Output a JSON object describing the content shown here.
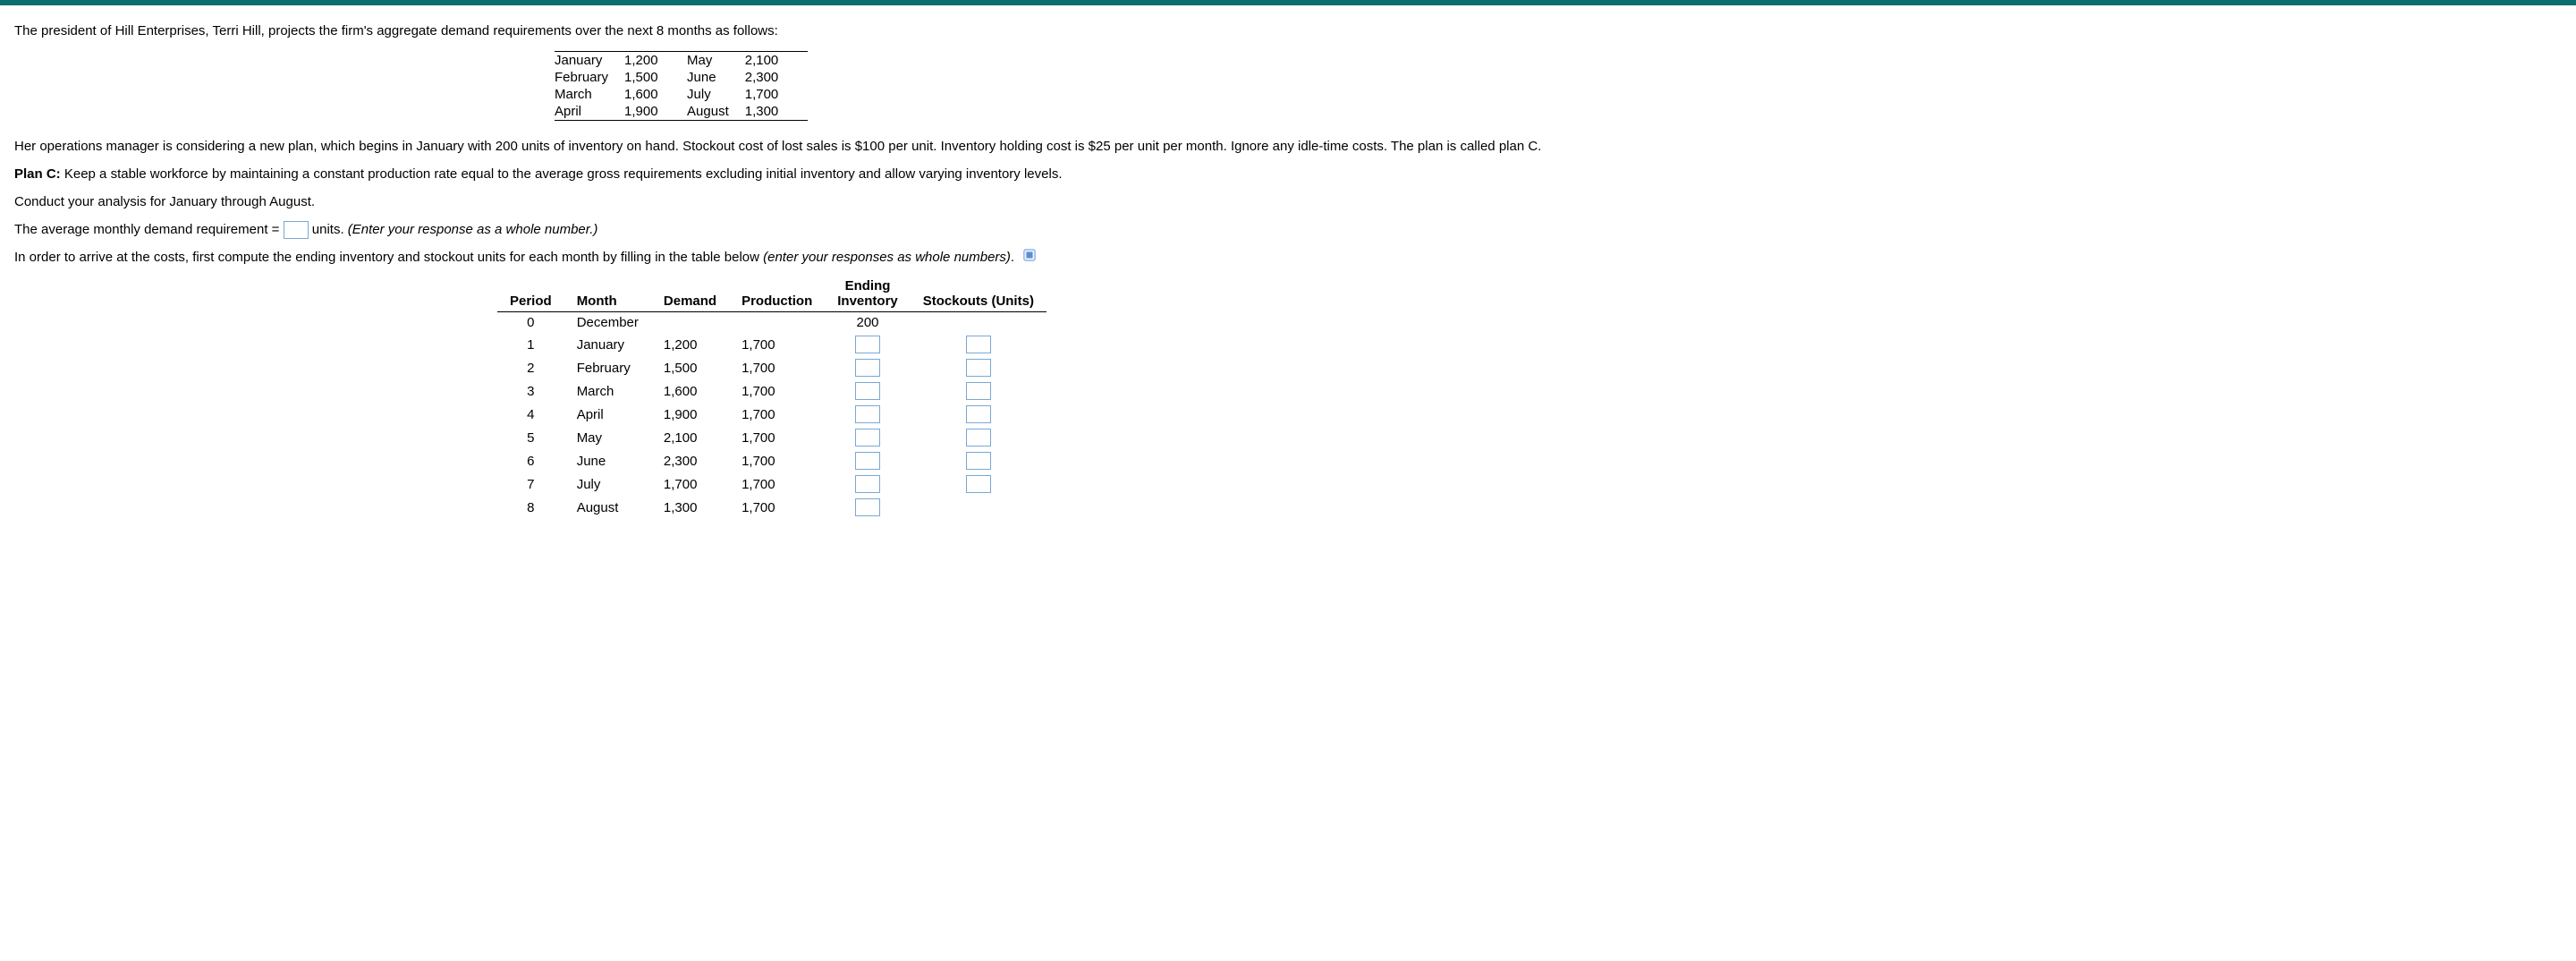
{
  "intro": "The president of Hill Enterprises, Terri Hill, projects the firm's aggregate demand requirements over the next 8 months as follows:",
  "demand_schedule": {
    "left": [
      {
        "month": "January",
        "value": "1,200"
      },
      {
        "month": "February",
        "value": "1,500"
      },
      {
        "month": "March",
        "value": "1,600"
      },
      {
        "month": "April",
        "value": "1,900"
      }
    ],
    "right": [
      {
        "month": "May",
        "value": "2,100"
      },
      {
        "month": "June",
        "value": "2,300"
      },
      {
        "month": "July",
        "value": "1,700"
      },
      {
        "month": "August",
        "value": "1,300"
      }
    ]
  },
  "paragraph2": "Her operations manager is considering a new plan, which begins in January with 200 units of inventory on hand. Stockout cost of lost sales is $100 per unit. Inventory holding cost is $25 per unit per month. Ignore any idle-time costs. The plan is called plan C.",
  "planC_label": "Plan C:",
  "planC_text": " Keep a stable workforce by maintaining a constant production rate equal to the average gross requirements excluding initial inventory and allow varying inventory levels.",
  "conduct": "Conduct your analysis for January through August.",
  "avg_pre": "The average monthly demand requirement = ",
  "avg_post_units": " units. ",
  "avg_hint": "(Enter your response as a whole number.)",
  "table_intro_pre": "In order to arrive at the costs, first compute the ending inventory and stockout units for each month by filling in the table below ",
  "table_intro_italic": "(enter your responses as whole numbers)",
  "table_intro_dot": ".",
  "worksheet": {
    "headers": {
      "period": "Period",
      "month": "Month",
      "demand": "Demand",
      "production": "Production",
      "ending_inventory_l1": "Ending",
      "ending_inventory_l2": "Inventory",
      "stockouts": "Stockouts (Units)"
    },
    "rows": [
      {
        "period": "0",
        "month": "December",
        "demand": "",
        "production": "",
        "ending_inventory": "200",
        "stockouts": "",
        "inv_input": false,
        "stk_input": false
      },
      {
        "period": "1",
        "month": "January",
        "demand": "1,200",
        "production": "1,700",
        "ending_inventory": "",
        "stockouts": "",
        "inv_input": true,
        "stk_input": true
      },
      {
        "period": "2",
        "month": "February",
        "demand": "1,500",
        "production": "1,700",
        "ending_inventory": "",
        "stockouts": "",
        "inv_input": true,
        "stk_input": true
      },
      {
        "period": "3",
        "month": "March",
        "demand": "1,600",
        "production": "1,700",
        "ending_inventory": "",
        "stockouts": "",
        "inv_input": true,
        "stk_input": true
      },
      {
        "period": "4",
        "month": "April",
        "demand": "1,900",
        "production": "1,700",
        "ending_inventory": "",
        "stockouts": "",
        "inv_input": true,
        "stk_input": true
      },
      {
        "period": "5",
        "month": "May",
        "demand": "2,100",
        "production": "1,700",
        "ending_inventory": "",
        "stockouts": "",
        "inv_input": true,
        "stk_input": true
      },
      {
        "period": "6",
        "month": "June",
        "demand": "2,300",
        "production": "1,700",
        "ending_inventory": "",
        "stockouts": "",
        "inv_input": true,
        "stk_input": true
      },
      {
        "period": "7",
        "month": "July",
        "demand": "1,700",
        "production": "1,700",
        "ending_inventory": "",
        "stockouts": "",
        "inv_input": true,
        "stk_input": true
      },
      {
        "period": "8",
        "month": "August",
        "demand": "1,300",
        "production": "1,700",
        "ending_inventory": "",
        "stockouts": "",
        "inv_input": true,
        "stk_input": false
      }
    ]
  },
  "colors": {
    "topbar": "#0a6e6e",
    "input_border": "#7aa7d6",
    "text": "#000000",
    "background": "#ffffff"
  }
}
